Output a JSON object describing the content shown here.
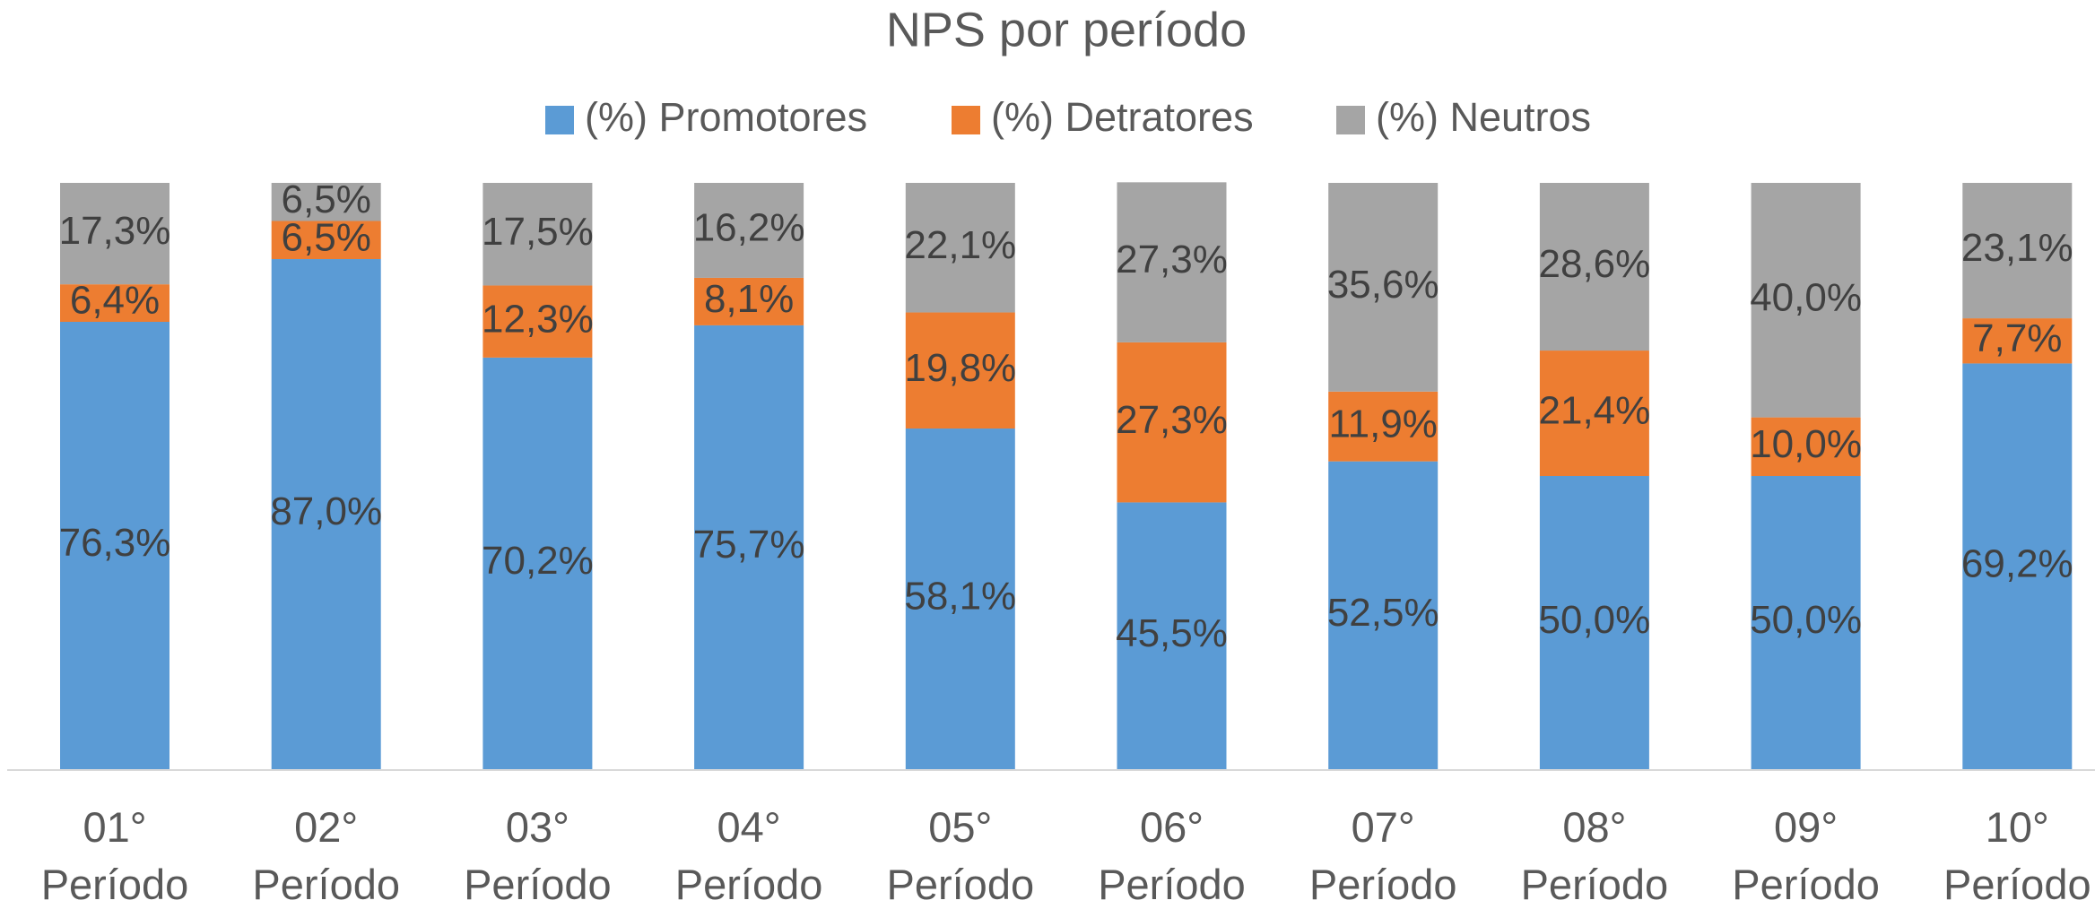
{
  "chart_data": {
    "type": "bar",
    "stacked": true,
    "title": "NPS  por período",
    "categories": [
      "01° Período",
      "02° Período",
      "03° Período",
      "04° Período",
      "05° Período",
      "06° Período",
      "07° Período",
      "08° Período",
      "09° Período",
      "10° Período"
    ],
    "series": [
      {
        "name": "(%) Promotores",
        "color": "#5b9bd5",
        "values": [
          76.3,
          87.0,
          70.2,
          75.7,
          58.1,
          45.5,
          52.5,
          50.0,
          50.0,
          69.2
        ],
        "value_labels": [
          "76,3%",
          "87,0%",
          "70,2%",
          "75,7%",
          "58,1%",
          "45,5%",
          "52,5%",
          "50,0%",
          "50,0%",
          "69,2%"
        ]
      },
      {
        "name": "(%) Detratores",
        "color": "#ed7d31",
        "values": [
          6.4,
          6.5,
          12.3,
          8.1,
          19.8,
          27.3,
          11.9,
          21.4,
          10.0,
          7.7
        ],
        "value_labels": [
          "6,4%",
          "6,5%",
          "12,3%",
          "8,1%",
          "19,8%",
          "27,3%",
          "11,9%",
          "21,4%",
          "10,0%",
          "7,7%"
        ]
      },
      {
        "name": "(%) Neutros",
        "color": "#a5a5a5",
        "values": [
          17.3,
          6.5,
          17.5,
          16.2,
          22.1,
          27.3,
          35.6,
          28.6,
          40.0,
          23.1
        ],
        "value_labels": [
          "17,3%",
          "6,5%",
          "17,5%",
          "16,2%",
          "22,1%",
          "27,3%",
          "35,6%",
          "28,6%",
          "40,0%",
          "23,1%"
        ]
      }
    ],
    "ylim": [
      0,
      100
    ],
    "legend": "top"
  }
}
